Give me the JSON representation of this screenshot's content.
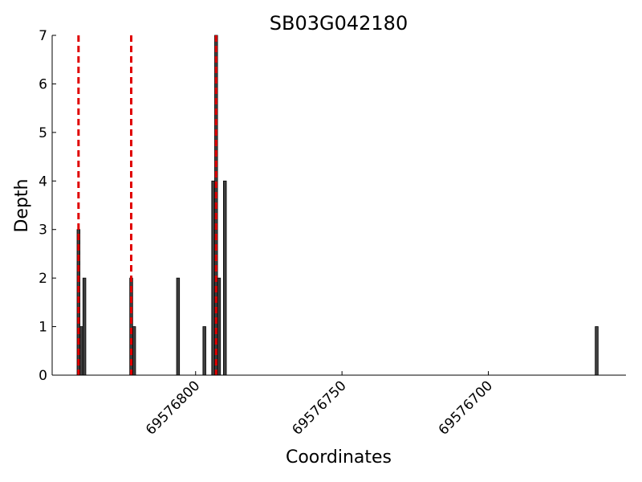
{
  "chart_data": {
    "type": "bar",
    "title": "SB03G042180",
    "xlabel": "Coordinates",
    "ylabel": "Depth",
    "x": [
      69576840,
      69576839,
      69576838,
      69576822,
      69576821,
      69576806,
      69576797,
      69576794,
      69576793,
      69576792,
      69576790,
      69576663
    ],
    "values": [
      3,
      1,
      2,
      2,
      1,
      2,
      1,
      4,
      7,
      2,
      4,
      1
    ],
    "color": "#404040",
    "vlines": [
      69576840,
      69576822,
      69576793
    ],
    "vline_color": "#e00000",
    "xlim": [
      69576849,
      69576653
    ],
    "xticks": [
      69576800,
      69576750,
      69576700
    ],
    "ylim": [
      0,
      7
    ],
    "yticks": [
      0,
      1,
      2,
      3,
      4,
      5,
      6,
      7
    ]
  }
}
